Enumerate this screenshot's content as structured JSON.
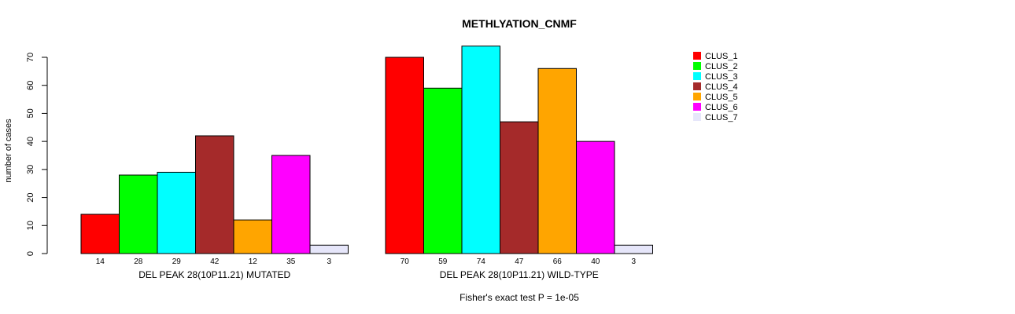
{
  "chart_data": {
    "type": "bar",
    "title": "METHLYATION_CNMF",
    "ylabel": "number of cases",
    "ylim": [
      0,
      70
    ],
    "yticks": [
      0,
      10,
      20,
      30,
      40,
      50,
      60,
      70
    ],
    "groups": [
      {
        "label": "DEL PEAK 28(10P11.21) MUTATED",
        "values": [
          14,
          28,
          29,
          42,
          12,
          35,
          3
        ],
        "value_labels": [
          "14",
          "28",
          "29",
          "42",
          "12",
          "35",
          "3"
        ]
      },
      {
        "label": "DEL PEAK 28(10P11.21) WILD-TYPE",
        "values": [
          70,
          59,
          74,
          47,
          66,
          40,
          3
        ],
        "value_labels": [
          "70",
          "59",
          "74",
          "47",
          "66",
          "40",
          "3"
        ]
      }
    ],
    "series": [
      {
        "name": "CLUS_1",
        "color": "#ff0000"
      },
      {
        "name": "CLUS_2",
        "color": "#00ff00"
      },
      {
        "name": "CLUS_3",
        "color": "#00ffff"
      },
      {
        "name": "CLUS_4",
        "color": "#a52a2a"
      },
      {
        "name": "CLUS_5",
        "color": "#ffa500"
      },
      {
        "name": "CLUS_6",
        "color": "#ff00ff"
      },
      {
        "name": "CLUS_7",
        "color": "#e6e6fa"
      }
    ],
    "legend_position": "top-right",
    "footnote": "Fisher's exact test P = 1e-05"
  }
}
